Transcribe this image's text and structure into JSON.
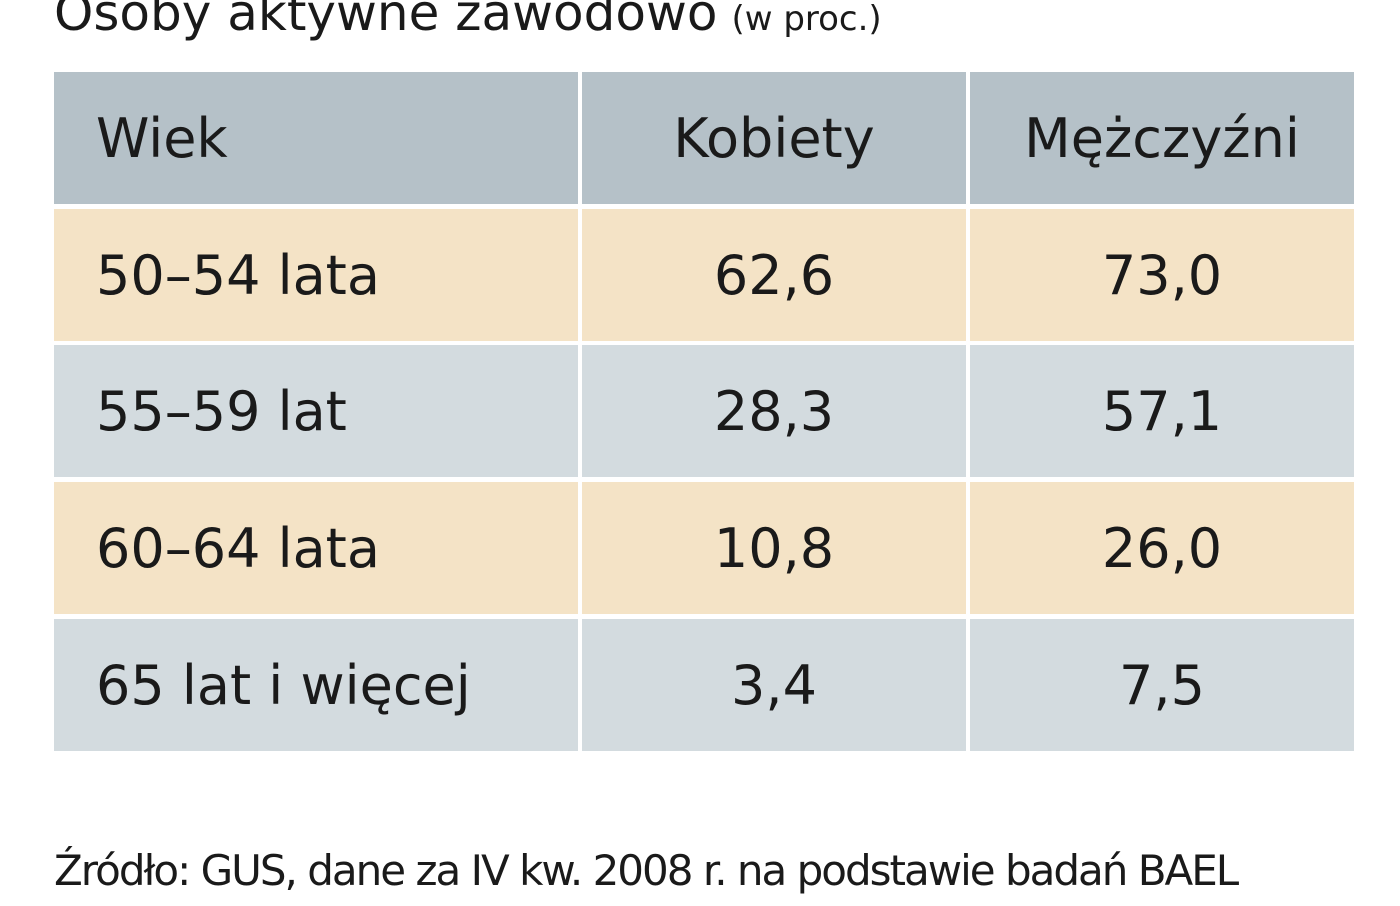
{
  "chart_data": {
    "type": "table",
    "title": "Osoby aktywne zawodowo",
    "unit": "(w proc.)",
    "columns": [
      "Wiek",
      "Kobiety",
      "Mężczyźni"
    ],
    "rows": [
      [
        "50–54 lata",
        "62,6",
        "73,0"
      ],
      [
        "55–59 lat",
        "28,3",
        "57,1"
      ],
      [
        "60–64 lata",
        "10,8",
        "26,0"
      ],
      [
        "65 lat i więcej",
        "3,4",
        "7,5"
      ]
    ],
    "source": "Źródło: GUS, dane za IV kw. 2008 r. na podstawie badań BAEL"
  },
  "colors": {
    "header_bg": "#b5c1c8",
    "row_beige": "#f4e3c6",
    "row_gray": "#d3dbdf"
  }
}
